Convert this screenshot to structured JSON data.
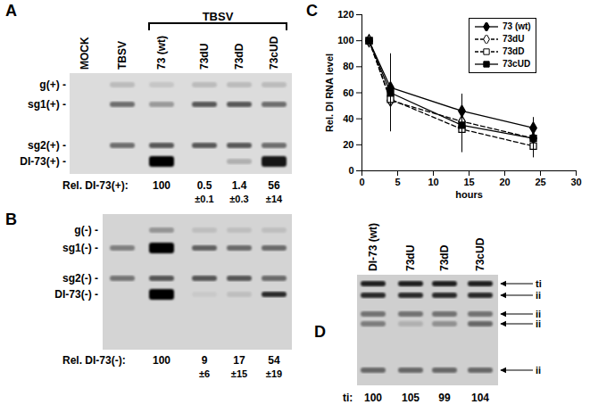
{
  "chart_data": {
    "type": "line",
    "title": "C",
    "xlabel": "hours",
    "ylabel": "Rel. DI RNA level",
    "x": [
      1,
      4,
      14,
      24
    ],
    "xlim": [
      0,
      30
    ],
    "xticks": [
      0,
      5,
      10,
      15,
      20,
      25,
      30
    ],
    "ylim": [
      0,
      120
    ],
    "yticks": [
      0,
      20,
      40,
      60,
      80,
      100,
      120
    ],
    "legend": "top-right",
    "series": [
      {
        "name": "73 (wt)",
        "color": "#000000",
        "marker": "diamond",
        "line_style": "solid",
        "values": [
          100,
          64,
          46,
          33
        ],
        "errors": [
          0,
          10,
          13,
          8
        ]
      },
      {
        "name": "73dU",
        "color": "#000000",
        "marker": "open-diamond",
        "line_style": "dashed",
        "values": [
          100,
          54,
          38,
          25
        ],
        "errors": [
          0,
          20,
          15,
          8
        ]
      },
      {
        "name": "73dD",
        "color": "#000000",
        "marker": "open-square",
        "line_style": "dashed",
        "values": [
          100,
          55,
          32,
          19
        ],
        "errors": [
          0,
          22,
          18,
          8
        ]
      },
      {
        "name": "73cUD",
        "color": "#000000",
        "marker": "square",
        "line_style": "solid",
        "values": [
          100,
          60,
          35,
          25
        ],
        "errors": [
          0,
          30,
          12,
          15
        ]
      }
    ]
  },
  "gels": [
    {
      "panel": "A",
      "rows": [
        "g(+) -",
        "sg1(+) -",
        "sg2(+) -",
        "DI-73(+) -"
      ],
      "group": {
        "label": "TBSV",
        "lanes": [
          "73 (wt)",
          "73dU",
          "73dD",
          "73cUD"
        ]
      },
      "lanes": [
        {
          "label": "MOCK",
          "bands": [
            0,
            0,
            0,
            0
          ]
        },
        {
          "label": "TBSV",
          "bands": [
            0.15,
            0.5,
            0.5,
            0
          ]
        },
        {
          "label": "73 (wt)",
          "bands": [
            0.1,
            0.3,
            0.6,
            1.0
          ]
        },
        {
          "label": "73dU",
          "bands": [
            0.15,
            0.6,
            0.6,
            0
          ]
        },
        {
          "label": "73dD",
          "bands": [
            0.15,
            0.6,
            0.6,
            0.2
          ]
        },
        {
          "label": "73cUD",
          "bands": [
            0.15,
            0.5,
            0.5,
            0.9
          ]
        }
      ],
      "quantification": {
        "label": "Rel. DI-73(+):",
        "values": [
          100,
          0.5,
          1.4,
          56
        ],
        "errors": [
          null,
          {
            "value": 0.1,
            "label": "±0.1"
          },
          {
            "value": 0.3,
            "label": "±0.3"
          },
          {
            "value": 14,
            "label": "±14"
          }
        ]
      }
    },
    {
      "panel": "B",
      "rows": [
        "g(-) -",
        "sg1(-) -",
        "sg2(-) -",
        "DI-73(-) -"
      ],
      "lanes": [
        {
          "label": null,
          "bands": [
            0,
            0.4,
            0.45,
            0
          ]
        },
        {
          "label": null,
          "bands": [
            0.3,
            1.0,
            0.6,
            1.0
          ]
        },
        {
          "label": null,
          "bands": [
            0.1,
            0.55,
            0.6,
            0.05
          ]
        },
        {
          "label": null,
          "bands": [
            0.1,
            0.5,
            0.6,
            0.1
          ]
        },
        {
          "label": null,
          "bands": [
            0.1,
            0.5,
            0.5,
            0.8
          ]
        }
      ],
      "quantification": {
        "label": "Rel. DI-73(-):",
        "values": [
          100,
          9,
          17,
          54
        ],
        "errors": [
          null,
          {
            "value": 6,
            "label": "±6"
          },
          {
            "value": 15,
            "label": "±15"
          },
          {
            "value": 19,
            "label": "±19"
          }
        ]
      }
    },
    {
      "panel": "D",
      "rows": [
        "ti",
        "ii",
        "ii",
        "ii",
        "ii"
      ],
      "lanes": [
        {
          "label": "DI-73 (wt)",
          "bands": [
            0.85,
            0.8,
            0.45,
            0.4,
            0.5
          ]
        },
        {
          "label": "73dU",
          "bands": [
            0.85,
            0.8,
            0.45,
            0.15,
            0.5
          ]
        },
        {
          "label": "73dD",
          "bands": [
            0.85,
            0.8,
            0.45,
            0.3,
            0.5
          ]
        },
        {
          "label": "73cUD",
          "bands": [
            0.85,
            0.8,
            0.45,
            0.5,
            0.5
          ]
        }
      ],
      "quantification": {
        "label": "ti:",
        "values": [
          100,
          105,
          99,
          104
        ],
        "errors": [
          null,
          null,
          null,
          null
        ]
      }
    }
  ]
}
